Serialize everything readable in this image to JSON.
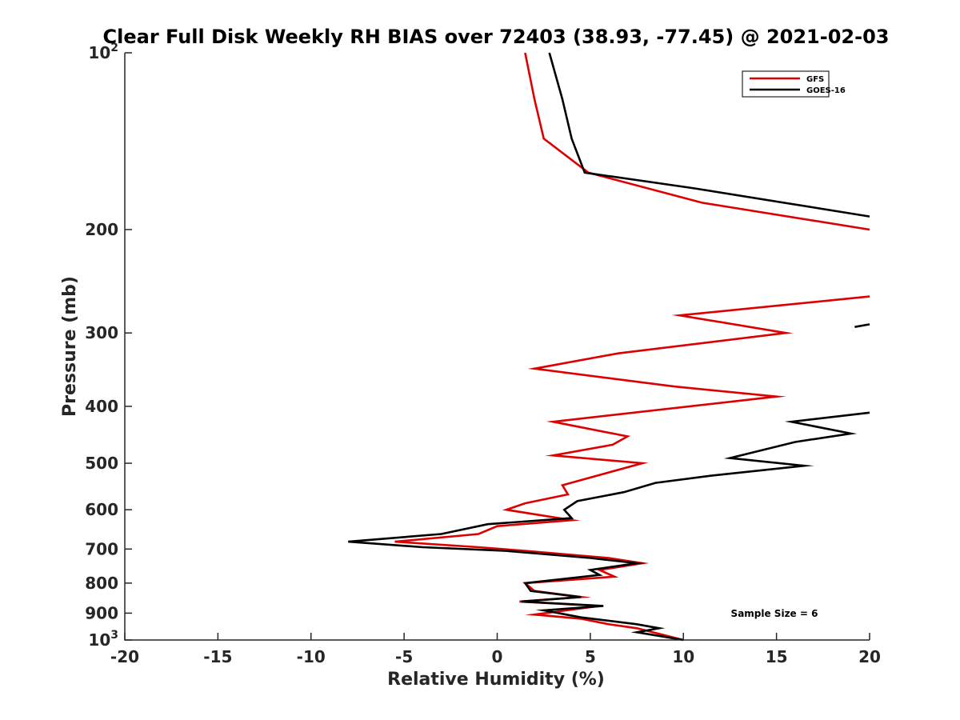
{
  "chart_data": {
    "type": "line",
    "title": "Clear Full Disk Weekly RH BIAS over 72403 (38.93, -77.45) @ 2021-02-03",
    "xlabel": "Relative Humidity (%)",
    "ylabel": "Pressure (mb)",
    "xlim": [
      -20,
      20
    ],
    "ylim": [
      100,
      1000
    ],
    "y_scale": "log",
    "y_reversed": true,
    "x_ticks": [
      "-20",
      "-15",
      "-10",
      "-5",
      "0",
      "5",
      "10",
      "15",
      "20"
    ],
    "y_ticks": [
      {
        "value": 100,
        "base": "10",
        "exp": "2"
      },
      {
        "value": 200,
        "label": "200"
      },
      {
        "value": 300,
        "label": "300"
      },
      {
        "value": 400,
        "label": "400"
      },
      {
        "value": 500,
        "label": "500"
      },
      {
        "value": 600,
        "label": "600"
      },
      {
        "value": 700,
        "label": "700"
      },
      {
        "value": 800,
        "label": "800"
      },
      {
        "value": 900,
        "label": "900"
      },
      {
        "value": 1000,
        "base": "10",
        "exp": "3"
      }
    ],
    "grid": false,
    "legend_position": "top-right",
    "annotation": "Sample Size = 6",
    "series": [
      {
        "name": "GFS",
        "color": "#dd0000",
        "segments": [
          [
            [
              1.5,
              100
            ],
            [
              2.0,
              120
            ],
            [
              2.5,
              140
            ],
            [
              4.9,
              160
            ],
            [
              11.0,
              180
            ],
            [
              20.0,
              200
            ]
          ],
          [
            [
              20.0,
              260
            ],
            [
              9.8,
              280
            ],
            [
              15.5,
              300
            ],
            [
              6.5,
              325
            ],
            [
              2.0,
              345
            ],
            [
              9.5,
              370
            ],
            [
              15.0,
              385
            ],
            [
              3.0,
              425
            ],
            [
              7.0,
              450
            ],
            [
              6.2,
              465
            ],
            [
              3.0,
              485
            ],
            [
              7.8,
              500
            ],
            [
              3.5,
              545
            ],
            [
              3.8,
              565
            ],
            [
              1.5,
              585
            ],
            [
              0.5,
              600
            ],
            [
              4.0,
              625
            ],
            [
              0.0,
              640
            ],
            [
              -1.0,
              660
            ],
            [
              -5.5,
              680
            ],
            [
              -1.0,
              695
            ],
            [
              1.5,
              705
            ],
            [
              6.0,
              725
            ],
            [
              7.8,
              740
            ],
            [
              5.5,
              760
            ],
            [
              6.3,
              780
            ],
            [
              1.5,
              800
            ],
            [
              2.0,
              825
            ],
            [
              4.5,
              845
            ],
            [
              1.2,
              860
            ],
            [
              5.5,
              875
            ],
            [
              2.0,
              905
            ],
            [
              4.5,
              920
            ],
            [
              6.0,
              940
            ],
            [
              7.5,
              955
            ],
            [
              10.0,
              1000
            ]
          ]
        ]
      },
      {
        "name": "GOES-16",
        "color": "#000000",
        "segments": [
          [
            [
              2.8,
              100
            ],
            [
              3.5,
              120
            ],
            [
              4.0,
              140
            ],
            [
              4.7,
              160
            ],
            [
              10.5,
              170
            ],
            [
              20.0,
              190
            ]
          ],
          [
            [
              20.0,
              290
            ],
            [
              19.2,
              293
            ]
          ],
          [
            [
              20.0,
              410
            ],
            [
              15.8,
              425
            ],
            [
              19.0,
              445
            ],
            [
              16.0,
              460
            ],
            [
              12.5,
              490
            ],
            [
              16.5,
              505
            ],
            [
              11.5,
              525
            ],
            [
              8.5,
              540
            ],
            [
              6.8,
              560
            ],
            [
              4.3,
              580
            ],
            [
              3.6,
              600
            ],
            [
              4.0,
              620
            ],
            [
              -0.5,
              635
            ],
            [
              -3.0,
              660
            ],
            [
              -8.0,
              680
            ],
            [
              -4.0,
              695
            ],
            [
              0.5,
              705
            ],
            [
              5.0,
              725
            ],
            [
              7.5,
              740
            ],
            [
              5.0,
              760
            ],
            [
              5.5,
              775
            ],
            [
              1.5,
              800
            ],
            [
              1.8,
              825
            ],
            [
              4.5,
              845
            ],
            [
              1.3,
              860
            ],
            [
              5.7,
              875
            ],
            [
              2.5,
              890
            ],
            [
              4.5,
              915
            ],
            [
              7.5,
              940
            ],
            [
              8.7,
              955
            ],
            [
              7.5,
              970
            ],
            [
              10.0,
              1000
            ]
          ]
        ]
      }
    ]
  }
}
